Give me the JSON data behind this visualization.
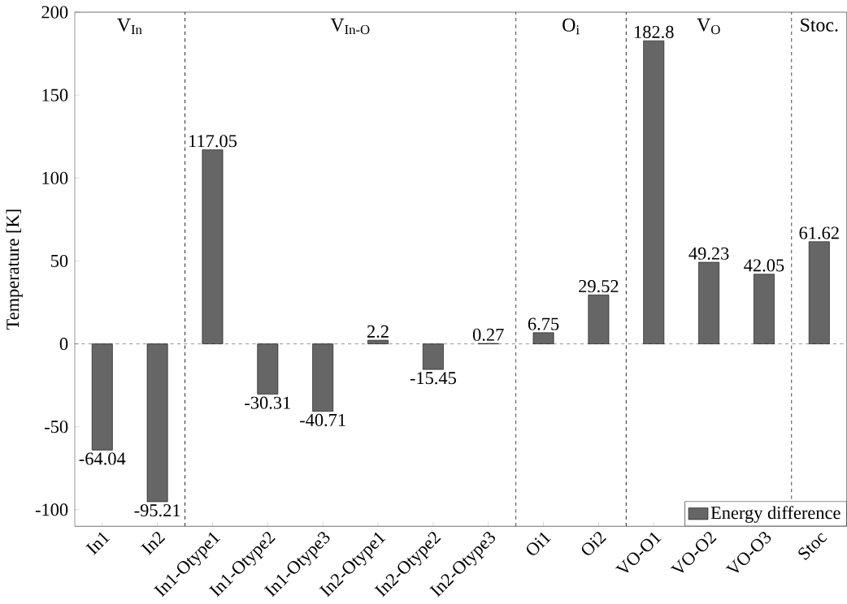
{
  "chart_data": {
    "type": "bar",
    "ylabel": "Temperature [K]",
    "categories": [
      "In1",
      "In2",
      "In1-Otype1",
      "In1-Otype2",
      "In1-Otype3",
      "In2-Otype1",
      "In2-Otype2",
      "In2-Otype3",
      "Oi1",
      "Oi2",
      "VO-O1",
      "VO-O2",
      "VO-O3",
      "Stoc"
    ],
    "series": [
      {
        "name": "Energy difference",
        "color": "#666666",
        "values": [
          -64.04,
          -95.21,
          117.05,
          -30.31,
          -40.71,
          2.2,
          -15.45,
          0.27,
          6.75,
          29.52,
          182.8,
          49.23,
          42.05,
          61.62
        ]
      }
    ],
    "data_labels": true,
    "ylim": [
      -110,
      200
    ],
    "yticks": [
      -100,
      -50,
      0,
      50,
      100,
      150,
      200
    ],
    "ref_lines": [
      {
        "axis": "y",
        "value": 0,
        "line_style": "dashed"
      }
    ],
    "annotations": [
      "V$_{In}$",
      "V$_{In-O}$",
      "O$_{i}$",
      "V$_{O}$",
      "Stoc."
    ],
    "legend": "bottom right",
    "grid": false
  }
}
